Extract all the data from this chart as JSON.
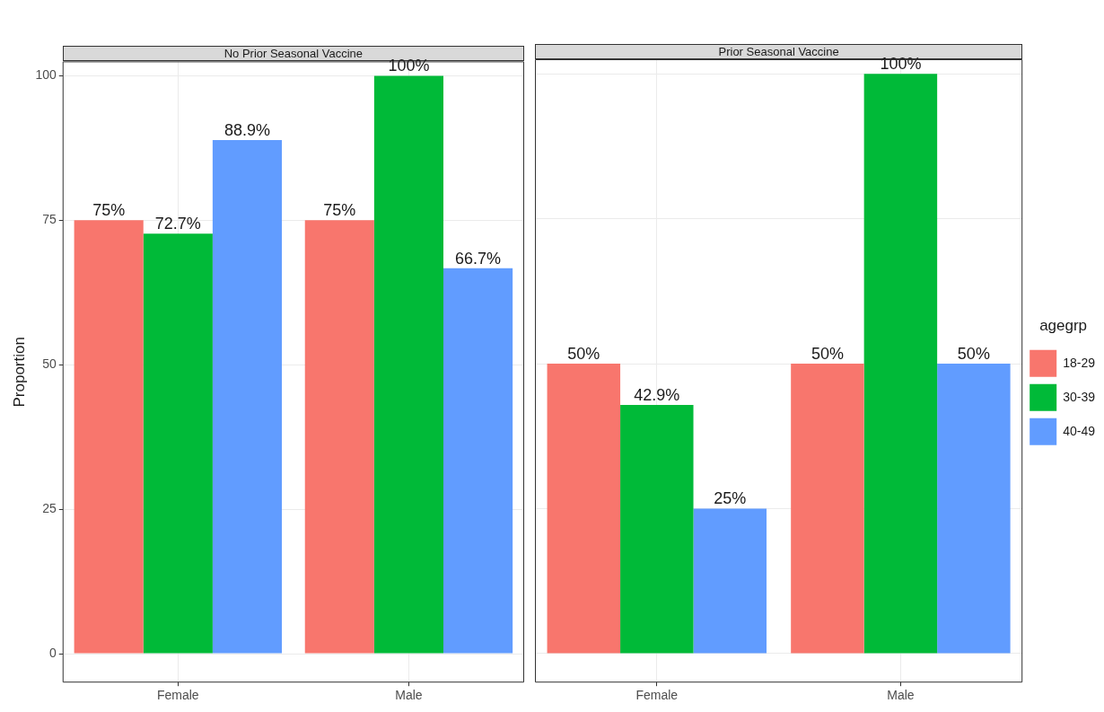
{
  "chart_data": [
    {
      "type": "bar",
      "title": "No Prior Seasonal Vaccine",
      "ylabel": "Proportion",
      "categories": [
        "Female",
        "Male"
      ],
      "series": [
        {
          "color": "#f8766d",
          "values": [
            75,
            75
          ],
          "value_labels": [
            "75%",
            "75%"
          ]
        },
        {
          "color": "#00ba38",
          "values": [
            72.7,
            100
          ],
          "value_labels": [
            "72.7%",
            "100%"
          ]
        },
        {
          "color": "#619cff",
          "values": [
            88.9,
            66.7
          ],
          "value_labels": [
            "88.9%",
            "66.7%"
          ]
        }
      ],
      "ylim": [
        -5,
        102.5
      ],
      "yticks": [
        0,
        25,
        50,
        75,
        100
      ],
      "grid": true,
      "legend": false
    },
    {
      "type": "bar",
      "title": "Prior Seasonal Vaccine",
      "categories": [
        "Female",
        "Male"
      ],
      "series": [
        {
          "name": "18-29",
          "color": "#f8766d",
          "values": [
            50,
            50
          ],
          "value_labels": [
            "50%",
            "50%"
          ]
        },
        {
          "name": "30-39",
          "color": "#00ba38",
          "values": [
            42.9,
            100
          ],
          "value_labels": [
            "42.9%",
            "100%"
          ]
        },
        {
          "name": "40-49",
          "color": "#619cff",
          "values": [
            25,
            50
          ],
          "value_labels": [
            "25%",
            "50%"
          ]
        }
      ],
      "ylim": [
        -5,
        102.5
      ],
      "yticks": [
        0,
        25,
        50,
        75,
        100
      ],
      "grid": true,
      "tick_labels": "x",
      "legend": "right",
      "legend_title": "agegrp"
    }
  ]
}
